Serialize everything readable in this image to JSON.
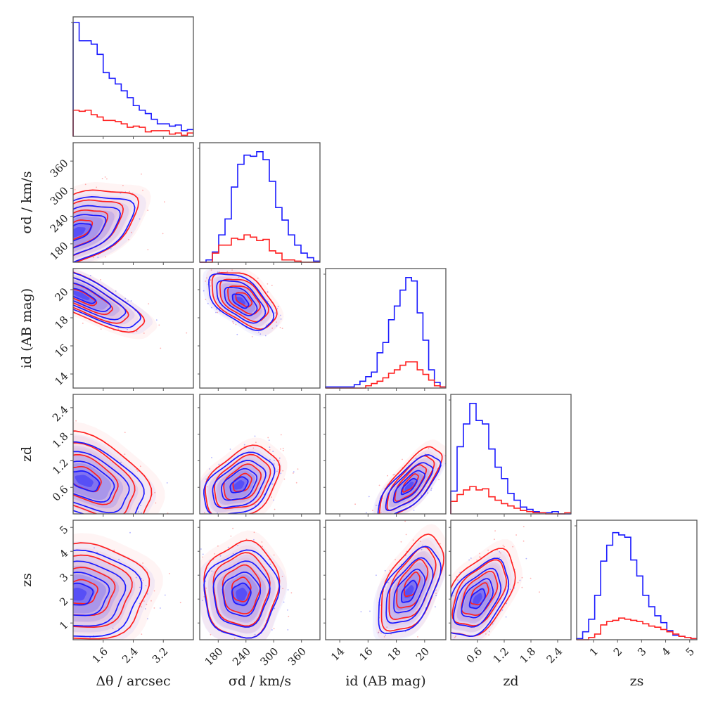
{
  "chart_data": {
    "type": "corner",
    "title": "",
    "colors": {
      "series_a": "#1a1aff",
      "series_b": "#ff2020",
      "frame": "#555555"
    },
    "series": [
      {
        "name": "blue population",
        "color": "#1a1aff"
      },
      {
        "name": "red population",
        "color": "#ff2020"
      }
    ],
    "parameters": [
      {
        "key": "dtheta",
        "label": "Δθ / arcsec",
        "range": [
          0.8,
          4.0
        ],
        "ticks": [
          1.6,
          2.4,
          3.2
        ],
        "tick_labels": [
          "1.6",
          "2.4",
          "3.2"
        ]
      },
      {
        "key": "sigma_d",
        "label": "σd / km/s",
        "range": [
          140,
          400
        ],
        "ticks": [
          180,
          240,
          300,
          360
        ],
        "tick_labels": [
          "180",
          "240",
          "300",
          "360"
        ]
      },
      {
        "key": "i_d",
        "label": "id (AB mag)",
        "range": [
          13.0,
          21.5
        ],
        "ticks": [
          14,
          16,
          18,
          20
        ],
        "tick_labels": [
          "14",
          "16",
          "18",
          "20"
        ]
      },
      {
        "key": "z_d",
        "label": "zd",
        "range": [
          0.0,
          2.7
        ],
        "ticks": [
          0.6,
          1.2,
          1.8,
          2.4
        ],
        "tick_labels": [
          "0.6",
          "1.2",
          "1.8",
          "2.4"
        ]
      },
      {
        "key": "z_s",
        "label": "zs",
        "range": [
          0.3,
          5.3
        ],
        "ticks": [
          1,
          2,
          3,
          4,
          5
        ],
        "tick_labels": [
          "1",
          "2",
          "3",
          "4",
          "5"
        ]
      }
    ],
    "histograms": [
      {
        "param": "dtheta",
        "blue": [
          1.0,
          0.84,
          0.84,
          0.81,
          0.72,
          0.56,
          0.51,
          0.46,
          0.4,
          0.34,
          0.27,
          0.23,
          0.2,
          0.15,
          0.11,
          0.11,
          0.09,
          0.1,
          0.05,
          0.06
        ],
        "red": [
          0.23,
          0.22,
          0.23,
          0.19,
          0.17,
          0.14,
          0.14,
          0.13,
          0.11,
          0.08,
          0.09,
          0.08,
          0.04,
          0.05,
          0.05,
          0.05,
          0.02,
          0.03,
          0.01,
          0.03
        ]
      },
      {
        "param": "sigma_d",
        "blue": [
          0.0,
          0.02,
          0.09,
          0.24,
          0.38,
          0.66,
          0.86,
          0.94,
          0.93,
          0.97,
          0.9,
          0.71,
          0.48,
          0.37,
          0.24,
          0.15,
          0.08,
          0.04,
          0.01
        ],
        "red": [
          0.0,
          0.0,
          0.08,
          0.15,
          0.15,
          0.21,
          0.2,
          0.24,
          0.22,
          0.19,
          0.2,
          0.1,
          0.08,
          0.02,
          0.02,
          0.01,
          0.0,
          0.0,
          0.0
        ]
      },
      {
        "param": "i_d",
        "blue": [
          0.01,
          0.01,
          0.01,
          0.01,
          0.01,
          0.03,
          0.06,
          0.1,
          0.14,
          0.31,
          0.4,
          0.6,
          0.72,
          0.86,
          0.97,
          0.94,
          0.66,
          0.42,
          0.16,
          0.05,
          0.01
        ],
        "red": [
          0.0,
          0.0,
          0.0,
          0.0,
          0.0,
          0.0,
          0.0,
          0.02,
          0.04,
          0.06,
          0.09,
          0.13,
          0.16,
          0.2,
          0.23,
          0.23,
          0.16,
          0.12,
          0.07,
          0.02,
          0.01
        ]
      },
      {
        "param": "z_d",
        "blue": [
          0.2,
          0.59,
          0.79,
          0.97,
          0.82,
          0.79,
          0.57,
          0.41,
          0.31,
          0.18,
          0.12,
          0.06,
          0.04,
          0.02,
          0.01,
          0.01,
          0.02,
          0.0,
          0.0
        ],
        "red": [
          0.11,
          0.17,
          0.21,
          0.24,
          0.21,
          0.22,
          0.15,
          0.12,
          0.09,
          0.07,
          0.05,
          0.03,
          0.02,
          0.01,
          0.01,
          0.0,
          0.0,
          0.0,
          0.01
        ]
      },
      {
        "param": "z_s",
        "blue": [
          0.01,
          0.07,
          0.18,
          0.39,
          0.69,
          0.83,
          0.94,
          0.92,
          0.9,
          0.7,
          0.56,
          0.39,
          0.29,
          0.21,
          0.15,
          0.08,
          0.04,
          0.03,
          0.02,
          0.01
        ],
        "red": [
          0.0,
          0.0,
          0.02,
          0.05,
          0.13,
          0.16,
          0.17,
          0.19,
          0.18,
          0.17,
          0.16,
          0.14,
          0.12,
          0.11,
          0.09,
          0.07,
          0.05,
          0.03,
          0.02,
          0.01
        ]
      }
    ],
    "pairs": [
      {
        "x": "dtheta",
        "y": "sigma_d",
        "blue": {
          "mean": [
            0.9,
            205
          ],
          "sd": [
            0.75,
            40
          ],
          "rho": 0.55
        },
        "red": {
          "mean": [
            0.9,
            210
          ],
          "sd": [
            0.8,
            45
          ],
          "rho": 0.55
        }
      },
      {
        "x": "dtheta",
        "y": "i_d",
        "blue": {
          "mean": [
            1.0,
            19.6
          ],
          "sd": [
            0.8,
            1.1
          ],
          "rho": -0.8
        },
        "red": {
          "mean": [
            1.0,
            19.5
          ],
          "sd": [
            0.85,
            1.2
          ],
          "rho": -0.8
        }
      },
      {
        "x": "sigma_d",
        "y": "i_d",
        "blue": {
          "mean": [
            228,
            19.2
          ],
          "sd": [
            35,
            1.0
          ],
          "rho": -0.55
        },
        "red": {
          "mean": [
            235,
            19.3
          ],
          "sd": [
            35,
            1.0
          ],
          "rho": -0.5
        }
      },
      {
        "x": "dtheta",
        "y": "z_d",
        "blue": {
          "mean": [
            1.1,
            0.75
          ],
          "sd": [
            0.8,
            0.45
          ],
          "rho": -0.45
        },
        "red": {
          "mean": [
            1.1,
            0.8
          ],
          "sd": [
            0.9,
            0.55
          ],
          "rho": -0.45
        }
      },
      {
        "x": "sigma_d",
        "y": "z_d",
        "blue": {
          "mean": [
            225,
            0.65
          ],
          "sd": [
            38,
            0.35
          ],
          "rho": 0.4
        },
        "red": {
          "mean": [
            232,
            0.7
          ],
          "sd": [
            40,
            0.4
          ],
          "rho": 0.35
        }
      },
      {
        "x": "i_d",
        "y": "z_d",
        "blue": {
          "mean": [
            18.9,
            0.62
          ],
          "sd": [
            1.1,
            0.35
          ],
          "rho": 0.75
        },
        "red": {
          "mean": [
            19.0,
            0.7
          ],
          "sd": [
            1.1,
            0.4
          ],
          "rho": 0.75
        }
      },
      {
        "x": "dtheta",
        "y": "z_s",
        "blue": {
          "mean": [
            0.9,
            2.2
          ],
          "sd": [
            0.85,
            0.9
          ],
          "rho": 0.0
        },
        "red": {
          "mean": [
            1.0,
            2.3
          ],
          "sd": [
            0.9,
            1.0
          ],
          "rho": 0.0
        }
      },
      {
        "x": "sigma_d",
        "y": "z_s",
        "blue": {
          "mean": [
            230,
            2.2
          ],
          "sd": [
            40,
            0.9
          ],
          "rho": 0.05
        },
        "red": {
          "mean": [
            230,
            2.4
          ],
          "sd": [
            40,
            1.0
          ],
          "rho": 0.05
        }
      },
      {
        "x": "i_d",
        "y": "z_s",
        "blue": {
          "mean": [
            18.9,
            2.3
          ],
          "sd": [
            1.1,
            0.9
          ],
          "rho": 0.55
        },
        "red": {
          "mean": [
            19.1,
            2.6
          ],
          "sd": [
            1.1,
            1.0
          ],
          "rho": 0.55
        }
      },
      {
        "x": "z_d",
        "y": "z_s",
        "blue": {
          "mean": [
            0.6,
            2.0
          ],
          "sd": [
            0.35,
            0.8
          ],
          "rho": 0.5
        },
        "red": {
          "mean": [
            0.65,
            2.2
          ],
          "sd": [
            0.4,
            0.9
          ],
          "rho": 0.5
        }
      }
    ],
    "contour_levels_sigma": [
      0.5,
      1.0,
      1.5,
      2.0
    ],
    "grid": false,
    "legend": "none"
  }
}
